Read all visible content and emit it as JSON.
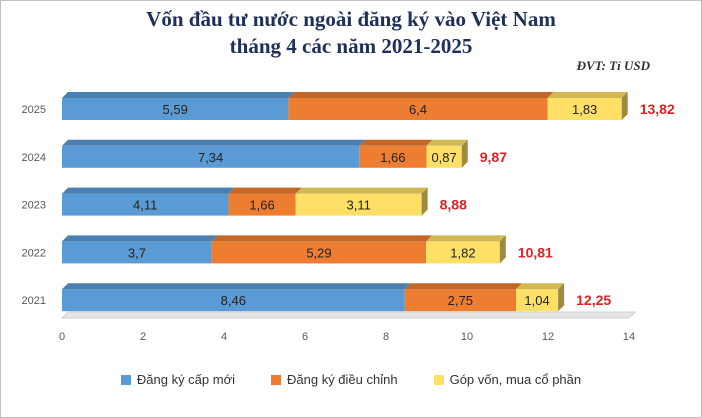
{
  "chart_data": {
    "type": "bar",
    "orientation": "horizontal",
    "stacked": true,
    "title_line1": "Vốn đầu tư nước ngoài đăng ký vào Việt Nam",
    "title_line2": "tháng 4 các năm 2021-2025",
    "unit_note": "ĐVT: Tỉ USD",
    "categories": [
      "2025",
      "2024",
      "2023",
      "2022",
      "2021"
    ],
    "series": [
      {
        "name": "Đăng ký cấp mới",
        "color": "#5b9bd5",
        "values": [
          5.59,
          7.34,
          4.11,
          3.7,
          8.46
        ],
        "labels": [
          "5,59",
          "7,34",
          "4,11",
          "3,7",
          "8,46"
        ]
      },
      {
        "name": "Đăng ký điều chỉnh",
        "color": "#ed7d31",
        "values": [
          6.4,
          1.66,
          1.66,
          5.29,
          2.75
        ],
        "labels": [
          "6,4",
          "1,66",
          "1,66",
          "5,29",
          "2,75"
        ]
      },
      {
        "name": "Góp vốn, mua cổ phần",
        "color": "#ffe066",
        "values": [
          1.83,
          0.87,
          3.11,
          1.82,
          1.04
        ],
        "labels": [
          "1,83",
          "0,87",
          "3,11",
          "1,82",
          "1,04"
        ]
      }
    ],
    "totals": [
      13.82,
      9.87,
      8.88,
      10.81,
      12.25
    ],
    "total_labels": [
      "13,82",
      "9,87",
      "8,88",
      "10,81",
      "12,25"
    ],
    "total_color": "#e02020",
    "xlim": [
      0,
      14
    ],
    "xticks": [
      "0",
      "2",
      "4",
      "6",
      "8",
      "10",
      "12",
      "14"
    ],
    "legend_position": "bottom"
  }
}
